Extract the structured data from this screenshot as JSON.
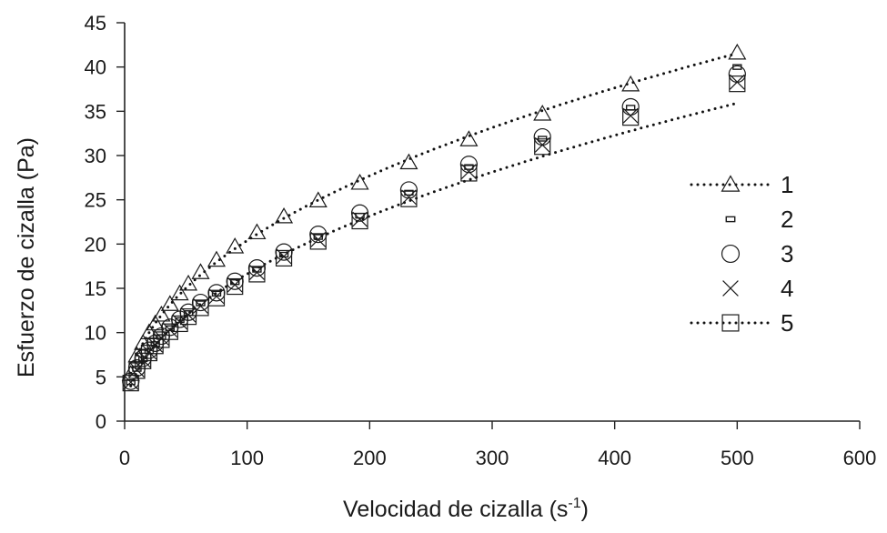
{
  "chart_data": {
    "type": "scatter",
    "title": "",
    "xlabel": "Velocidad de cizalla (s",
    "xlabel_sup": "-1",
    "xlabel_end": ")",
    "ylabel": "Esfuerzo de cizalla (Pa)",
    "xlim": [
      0,
      600
    ],
    "ylim": [
      0,
      45
    ],
    "xticks": [
      0,
      100,
      200,
      300,
      400,
      500,
      600
    ],
    "yticks": [
      0,
      5,
      10,
      15,
      20,
      25,
      30,
      35,
      40,
      45
    ],
    "grid": false,
    "legend_position": "right",
    "x": [
      5,
      10,
      15,
      20,
      25,
      30,
      37,
      45,
      52,
      62,
      75,
      90,
      108,
      130,
      158,
      192,
      232,
      281,
      341,
      413,
      500
    ],
    "series": [
      {
        "name": "1",
        "marker": "triangle",
        "trendline": true,
        "values": [
          5.3,
          7.4,
          8.8,
          10.0,
          11.0,
          12.0,
          13.2,
          14.4,
          15.5,
          16.8,
          18.2,
          19.7,
          21.3,
          23.1,
          24.9,
          26.9,
          29.2,
          31.8,
          34.7,
          38.0,
          41.6
        ]
      },
      {
        "name": "2",
        "marker": "dash",
        "trendline": false,
        "values": [
          4.4,
          5.9,
          7.0,
          7.9,
          8.7,
          9.5,
          10.5,
          11.4,
          12.2,
          13.3,
          14.4,
          15.7,
          17.1,
          18.8,
          20.8,
          23.2,
          25.8,
          28.7,
          31.9,
          35.4,
          40.0
        ]
      },
      {
        "name": "3",
        "marker": "circle",
        "trendline": false,
        "values": [
          4.5,
          6.0,
          7.1,
          8.0,
          8.8,
          9.6,
          10.6,
          11.5,
          12.3,
          13.4,
          14.5,
          15.8,
          17.3,
          19.1,
          21.1,
          23.5,
          26.1,
          29.0,
          32.1,
          35.5,
          39.2
        ]
      },
      {
        "name": "4",
        "marker": "x",
        "trendline": false,
        "values": [
          4.4,
          5.8,
          6.9,
          7.8,
          8.6,
          9.4,
          10.3,
          11.2,
          12.0,
          13.0,
          14.1,
          15.4,
          16.8,
          18.6,
          20.5,
          22.8,
          25.3,
          28.2,
          31.2,
          34.5,
          38.3
        ]
      },
      {
        "name": "5",
        "marker": "square",
        "trendline": true,
        "values": [
          4.3,
          5.7,
          6.8,
          7.7,
          8.5,
          9.2,
          10.1,
          11.0,
          11.8,
          12.8,
          13.9,
          15.2,
          16.6,
          18.4,
          20.3,
          22.6,
          25.1,
          28.0,
          31.0,
          34.3,
          38.1
        ]
      }
    ]
  }
}
